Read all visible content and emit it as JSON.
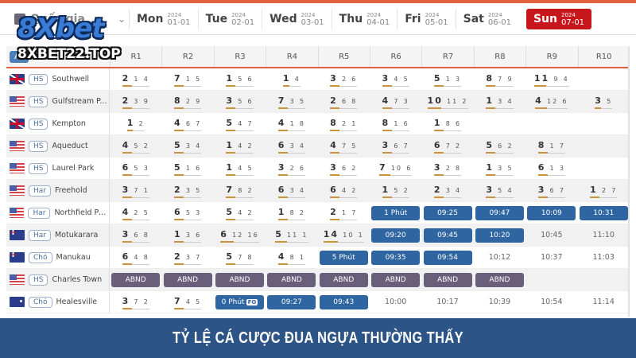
{
  "logo": {
    "brand": "8Xbet",
    "domain": "8XBET22.TOP"
  },
  "region_select": {
    "value": "Quốc gia",
    "icon": "chevron-down-icon"
  },
  "days": [
    {
      "name": "Mon",
      "year": "2024",
      "md": "01-01",
      "active": false
    },
    {
      "name": "Tue",
      "year": "2024",
      "md": "02-01",
      "active": false
    },
    {
      "name": "Wed",
      "year": "2024",
      "md": "03-01",
      "active": false
    },
    {
      "name": "Thu",
      "year": "2024",
      "md": "04-01",
      "active": false
    },
    {
      "name": "Fri",
      "year": "2024",
      "md": "05-01",
      "active": false
    },
    {
      "name": "Sat",
      "year": "2024",
      "md": "06-01",
      "active": false
    },
    {
      "name": "Sun",
      "year": "2024",
      "md": "07-01",
      "active": true
    }
  ],
  "table": {
    "all_button": "All",
    "race_headers": [
      "R1",
      "R2",
      "R3",
      "R4",
      "R5",
      "R6",
      "R7",
      "R8",
      "R9",
      "R10"
    ],
    "rows": [
      {
        "flag": "uk",
        "type": "HS",
        "track": "Southwell",
        "races": [
          [
            "2",
            "1",
            "4"
          ],
          [
            "7",
            "1",
            "5"
          ],
          [
            "1",
            "5",
            "6"
          ],
          [
            "1",
            "4"
          ],
          [
            "3",
            "2",
            "6"
          ],
          [
            "3",
            "4",
            "5"
          ],
          [
            "5",
            "1",
            "3"
          ],
          [
            "8",
            "7",
            "9"
          ],
          [
            "11",
            "9",
            "4"
          ],
          null
        ]
      },
      {
        "flag": "us",
        "type": "HS",
        "track": "Gulfstream P...",
        "races": [
          [
            "2",
            "3",
            "9"
          ],
          [
            "8",
            "2",
            "9"
          ],
          [
            "3",
            "5",
            "6"
          ],
          [
            "7",
            "3",
            "5"
          ],
          [
            "2",
            "6",
            "8"
          ],
          [
            "4",
            "7",
            "3"
          ],
          [
            "10",
            "11",
            "2"
          ],
          [
            "1",
            "3",
            "4"
          ],
          [
            "4",
            "12",
            "6"
          ],
          [
            "3",
            "5"
          ]
        ]
      },
      {
        "flag": "uk",
        "type": "HS",
        "track": "Kempton",
        "races": [
          [
            "1",
            "2"
          ],
          [
            "4",
            "6",
            "7"
          ],
          [
            "5",
            "4",
            "7"
          ],
          [
            "4",
            "1",
            "8"
          ],
          [
            "8",
            "2",
            "1"
          ],
          [
            "8",
            "1",
            "6"
          ],
          [
            "1",
            "8",
            "6"
          ],
          null,
          null,
          null
        ]
      },
      {
        "flag": "us",
        "type": "HS",
        "track": "Aqueduct",
        "races": [
          [
            "4",
            "5",
            "2"
          ],
          [
            "5",
            "3",
            "4"
          ],
          [
            "1",
            "4",
            "2"
          ],
          [
            "6",
            "3",
            "4"
          ],
          [
            "4",
            "7",
            "5"
          ],
          [
            "3",
            "6",
            "7"
          ],
          [
            "6",
            "7",
            "2"
          ],
          [
            "5",
            "6",
            "2"
          ],
          [
            "8",
            "1",
            "7"
          ],
          null
        ]
      },
      {
        "flag": "us",
        "type": "HS",
        "track": "Laurel Park",
        "races": [
          [
            "6",
            "5",
            "3"
          ],
          [
            "5",
            "1",
            "6"
          ],
          [
            "1",
            "4",
            "5"
          ],
          [
            "3",
            "2",
            "6"
          ],
          [
            "3",
            "6",
            "2"
          ],
          [
            "7",
            "10",
            "6"
          ],
          [
            "3",
            "2",
            "8"
          ],
          [
            "1",
            "3",
            "5"
          ],
          [
            "6",
            "1",
            "3"
          ],
          null
        ]
      },
      {
        "flag": "us",
        "type": "Har",
        "track": "Freehold",
        "races": [
          [
            "3",
            "7",
            "1"
          ],
          [
            "2",
            "3",
            "5"
          ],
          [
            "7",
            "8",
            "2"
          ],
          [
            "6",
            "3",
            "4"
          ],
          [
            "6",
            "4",
            "2"
          ],
          [
            "1",
            "5",
            "2"
          ],
          [
            "2",
            "3",
            "4"
          ],
          [
            "3",
            "5",
            "4"
          ],
          [
            "3",
            "6",
            "7"
          ],
          [
            "1",
            "2",
            "7"
          ]
        ]
      },
      {
        "flag": "us",
        "type": "Har",
        "track": "Northfield Park",
        "races": [
          [
            "4",
            "2",
            "5"
          ],
          [
            "6",
            "5",
            "3"
          ],
          [
            "5",
            "4",
            "2"
          ],
          [
            "1",
            "8",
            "2"
          ],
          [
            "2",
            "1",
            "7"
          ],
          {
            "pill": "blue",
            "text": "1 Phút"
          },
          {
            "pill": "blue",
            "text": "09:25"
          },
          {
            "pill": "blue",
            "text": "09:47"
          },
          {
            "pill": "blue",
            "text": "10:09"
          },
          {
            "pill": "blue",
            "text": "10:31"
          }
        ]
      },
      {
        "flag": "nz",
        "type": "Har",
        "track": "Motukarara",
        "races": [
          [
            "3",
            "6",
            "8"
          ],
          [
            "1",
            "3",
            "6"
          ],
          [
            "6",
            "12",
            "16"
          ],
          [
            "5",
            "11",
            "1"
          ],
          [
            "14",
            "10",
            "1"
          ],
          {
            "pill": "blue",
            "text": "09:20"
          },
          {
            "pill": "blue",
            "text": "09:45"
          },
          {
            "pill": "blue",
            "text": "10:20"
          },
          {
            "time": "10:45"
          },
          {
            "time": "11:10"
          }
        ]
      },
      {
        "flag": "nz",
        "type": "Chó",
        "track": "Manukau",
        "races": [
          [
            "6",
            "4",
            "8"
          ],
          [
            "2",
            "3",
            "7"
          ],
          [
            "5",
            "7",
            "8"
          ],
          [
            "4",
            "8",
            "1"
          ],
          {
            "pill": "blue",
            "text": "5 Phút"
          },
          {
            "pill": "blue",
            "text": "09:35"
          },
          {
            "pill": "blue",
            "text": "09:54"
          },
          {
            "time": "10:12"
          },
          {
            "time": "10:37"
          },
          {
            "time": "11:03"
          }
        ]
      },
      {
        "flag": "us",
        "type": "HS",
        "track": "Charles Town",
        "races": [
          {
            "pill": "abnd",
            "text": "ABND"
          },
          {
            "pill": "abnd",
            "text": "ABND"
          },
          {
            "pill": "abnd",
            "text": "ABND"
          },
          {
            "pill": "abnd",
            "text": "ABND"
          },
          {
            "pill": "abnd",
            "text": "ABND"
          },
          {
            "pill": "abnd",
            "text": "ABND"
          },
          {
            "pill": "abnd",
            "text": "ABND"
          },
          {
            "pill": "abnd",
            "text": "ABND"
          },
          null,
          null
        ]
      },
      {
        "flag": "au",
        "type": "Chó",
        "track": "Healesville",
        "races": [
          [
            "3",
            "7",
            "2"
          ],
          [
            "7",
            "4",
            "5"
          ],
          {
            "pill": "blue",
            "text": "0 Phút",
            "tag": "FO"
          },
          {
            "pill": "blue",
            "text": "09:27"
          },
          {
            "pill": "blue",
            "text": "09:43"
          },
          {
            "time": "10:00"
          },
          {
            "time": "10:17"
          },
          {
            "time": "10:39"
          },
          {
            "time": "10:54"
          },
          {
            "time": "11:14"
          }
        ]
      }
    ]
  },
  "banner": {
    "title": "TỶ LỆ CÁ CƯỢC ĐUA NGỰA THƯỜNG THẤY"
  },
  "colors": {
    "accent": "#e0613d",
    "active_day": "#c8171c",
    "pill_blue": "#2f65a0",
    "pill_abnd": "#6a5f7a",
    "banner": "#2d5487"
  }
}
